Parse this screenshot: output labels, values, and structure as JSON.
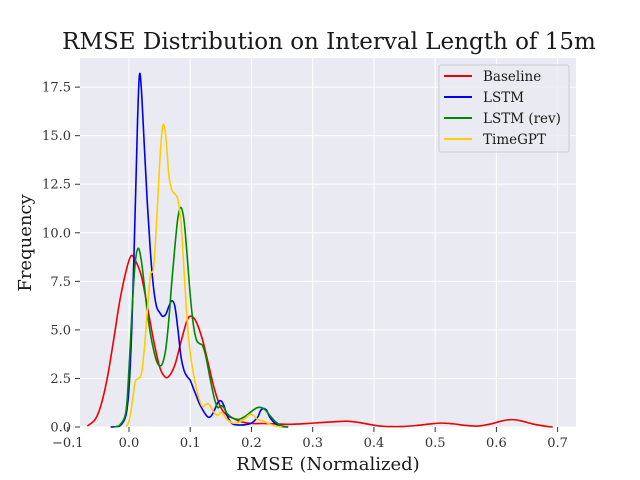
{
  "chart_data": {
    "type": "line",
    "title": "RMSE Distribution on Interval Length of 15m",
    "xlabel": "RMSE (Normalized)",
    "ylabel": "Frequency",
    "xlim": [
      -0.08,
      0.73
    ],
    "ylim": [
      0,
      19.0
    ],
    "xticks": [
      -0.1,
      0.0,
      0.1,
      0.2,
      0.3,
      0.4,
      0.5,
      0.6,
      0.7
    ],
    "xtick_labels": [
      "−0.1",
      "0.0",
      "0.1",
      "0.2",
      "0.3",
      "0.4",
      "0.5",
      "0.6",
      "0.7"
    ],
    "yticks": [
      0.0,
      2.5,
      5.0,
      7.5,
      10.0,
      12.5,
      15.0,
      17.5
    ],
    "ytick_labels": [
      "0.0",
      "2.5",
      "5.0",
      "7.5",
      "10.0",
      "12.5",
      "15.0",
      "17.5"
    ],
    "grid": true,
    "legend_position": "top-right",
    "series": [
      {
        "name": "Baseline",
        "color": "#ee0000",
        "points": [
          [
            -0.068,
            0.05
          ],
          [
            -0.055,
            0.4
          ],
          [
            -0.045,
            1.2
          ],
          [
            -0.035,
            2.6
          ],
          [
            -0.025,
            4.5
          ],
          [
            -0.015,
            6.5
          ],
          [
            -0.005,
            8.0
          ],
          [
            0.003,
            8.8
          ],
          [
            0.01,
            8.6
          ],
          [
            0.02,
            7.8
          ],
          [
            0.03,
            6.2
          ],
          [
            0.04,
            4.5
          ],
          [
            0.05,
            3.1
          ],
          [
            0.058,
            2.6
          ],
          [
            0.065,
            2.6
          ],
          [
            0.075,
            3.2
          ],
          [
            0.085,
            4.4
          ],
          [
            0.095,
            5.5
          ],
          [
            0.102,
            5.7
          ],
          [
            0.11,
            5.4
          ],
          [
            0.12,
            4.5
          ],
          [
            0.13,
            3.2
          ],
          [
            0.14,
            1.9
          ],
          [
            0.15,
            1.0
          ],
          [
            0.16,
            0.6
          ],
          [
            0.17,
            0.45
          ],
          [
            0.18,
            0.3
          ],
          [
            0.19,
            0.22
          ],
          [
            0.2,
            0.18
          ],
          [
            0.22,
            0.18
          ],
          [
            0.24,
            0.16
          ],
          [
            0.26,
            0.14
          ],
          [
            0.28,
            0.16
          ],
          [
            0.3,
            0.2
          ],
          [
            0.32,
            0.24
          ],
          [
            0.34,
            0.28
          ],
          [
            0.355,
            0.3
          ],
          [
            0.37,
            0.26
          ],
          [
            0.39,
            0.15
          ],
          [
            0.41,
            0.05
          ],
          [
            0.43,
            0.02
          ],
          [
            0.45,
            0.03
          ],
          [
            0.47,
            0.08
          ],
          [
            0.49,
            0.15
          ],
          [
            0.51,
            0.2
          ],
          [
            0.53,
            0.16
          ],
          [
            0.55,
            0.08
          ],
          [
            0.57,
            0.05
          ],
          [
            0.59,
            0.15
          ],
          [
            0.61,
            0.32
          ],
          [
            0.625,
            0.38
          ],
          [
            0.64,
            0.32
          ],
          [
            0.66,
            0.15
          ],
          [
            0.68,
            0.04
          ],
          [
            0.692,
            0.0
          ]
        ]
      },
      {
        "name": "LSTM",
        "color": "#0000ee",
        "points": [
          [
            -0.03,
            0.0
          ],
          [
            -0.015,
            0.05
          ],
          [
            -0.005,
            0.6
          ],
          [
            0.0,
            2.0
          ],
          [
            0.005,
            5.5
          ],
          [
            0.01,
            11.0
          ],
          [
            0.014,
            15.8
          ],
          [
            0.017,
            18.1
          ],
          [
            0.02,
            17.5
          ],
          [
            0.025,
            14.5
          ],
          [
            0.03,
            11.5
          ],
          [
            0.035,
            9.0
          ],
          [
            0.04,
            7.2
          ],
          [
            0.045,
            6.2
          ],
          [
            0.05,
            5.9
          ],
          [
            0.055,
            5.7
          ],
          [
            0.06,
            5.8
          ],
          [
            0.065,
            6.2
          ],
          [
            0.07,
            6.5
          ],
          [
            0.075,
            6.2
          ],
          [
            0.08,
            5.0
          ],
          [
            0.085,
            3.6
          ],
          [
            0.09,
            2.9
          ],
          [
            0.095,
            2.6
          ],
          [
            0.1,
            2.4
          ],
          [
            0.105,
            2.0
          ],
          [
            0.11,
            1.6
          ],
          [
            0.115,
            1.2
          ],
          [
            0.12,
            0.9
          ],
          [
            0.125,
            0.65
          ],
          [
            0.13,
            0.5
          ],
          [
            0.135,
            0.6
          ],
          [
            0.14,
            0.9
          ],
          [
            0.145,
            1.25
          ],
          [
            0.15,
            1.35
          ],
          [
            0.155,
            1.1
          ],
          [
            0.16,
            0.6
          ],
          [
            0.165,
            0.3
          ],
          [
            0.17,
            0.15
          ],
          [
            0.18,
            0.1
          ],
          [
            0.19,
            0.12
          ],
          [
            0.2,
            0.2
          ],
          [
            0.21,
            0.5
          ],
          [
            0.215,
            0.85
          ],
          [
            0.22,
            0.95
          ],
          [
            0.225,
            0.85
          ],
          [
            0.23,
            0.5
          ],
          [
            0.24,
            0.15
          ],
          [
            0.25,
            0.03
          ],
          [
            0.26,
            0.0
          ]
        ]
      },
      {
        "name": "LSTM (rev)",
        "color": "#008800",
        "points": [
          [
            -0.025,
            0.0
          ],
          [
            -0.015,
            0.1
          ],
          [
            -0.005,
            0.8
          ],
          [
            0.0,
            3.0
          ],
          [
            0.005,
            6.0
          ],
          [
            0.01,
            8.4
          ],
          [
            0.015,
            9.2
          ],
          [
            0.02,
            8.6
          ],
          [
            0.025,
            7.3
          ],
          [
            0.03,
            5.9
          ],
          [
            0.035,
            4.8
          ],
          [
            0.04,
            4.0
          ],
          [
            0.045,
            3.4
          ],
          [
            0.05,
            3.15
          ],
          [
            0.055,
            3.3
          ],
          [
            0.06,
            4.0
          ],
          [
            0.065,
            5.5
          ],
          [
            0.07,
            7.5
          ],
          [
            0.075,
            9.3
          ],
          [
            0.08,
            10.8
          ],
          [
            0.085,
            11.3
          ],
          [
            0.09,
            10.6
          ],
          [
            0.095,
            8.8
          ],
          [
            0.1,
            6.8
          ],
          [
            0.105,
            5.3
          ],
          [
            0.11,
            4.5
          ],
          [
            0.115,
            4.3
          ],
          [
            0.12,
            4.2
          ],
          [
            0.125,
            3.7
          ],
          [
            0.13,
            2.9
          ],
          [
            0.135,
            2.1
          ],
          [
            0.14,
            1.4
          ],
          [
            0.145,
            1.0
          ],
          [
            0.15,
            1.1
          ],
          [
            0.155,
            1.0
          ],
          [
            0.16,
            0.7
          ],
          [
            0.17,
            0.45
          ],
          [
            0.18,
            0.4
          ],
          [
            0.19,
            0.55
          ],
          [
            0.2,
            0.8
          ],
          [
            0.21,
            1.0
          ],
          [
            0.22,
            0.95
          ],
          [
            0.23,
            0.6
          ],
          [
            0.24,
            0.25
          ],
          [
            0.25,
            0.05
          ],
          [
            0.26,
            0.0
          ]
        ]
      },
      {
        "name": "TimeGPT",
        "color": "#ffcc00",
        "points": [
          [
            -0.005,
            0.0
          ],
          [
            0.0,
            0.3
          ],
          [
            0.005,
            1.2
          ],
          [
            0.01,
            2.3
          ],
          [
            0.015,
            2.5
          ],
          [
            0.02,
            2.7
          ],
          [
            0.025,
            4.0
          ],
          [
            0.03,
            6.0
          ],
          [
            0.035,
            7.8
          ],
          [
            0.04,
            8.2
          ],
          [
            0.045,
            10.5
          ],
          [
            0.05,
            13.5
          ],
          [
            0.055,
            15.5
          ],
          [
            0.06,
            15.0
          ],
          [
            0.065,
            13.0
          ],
          [
            0.07,
            12.2
          ],
          [
            0.075,
            12.0
          ],
          [
            0.08,
            11.7
          ],
          [
            0.085,
            10.5
          ],
          [
            0.09,
            8.0
          ],
          [
            0.095,
            5.5
          ],
          [
            0.1,
            3.8
          ],
          [
            0.105,
            2.8
          ],
          [
            0.11,
            2.0
          ],
          [
            0.115,
            1.4
          ],
          [
            0.12,
            1.05
          ],
          [
            0.125,
            1.15
          ],
          [
            0.13,
            1.2
          ],
          [
            0.135,
            0.95
          ],
          [
            0.14,
            0.7
          ],
          [
            0.145,
            0.6
          ],
          [
            0.15,
            0.75
          ],
          [
            0.155,
            0.6
          ],
          [
            0.16,
            0.4
          ],
          [
            0.17,
            0.2
          ],
          [
            0.18,
            0.25
          ],
          [
            0.19,
            0.45
          ],
          [
            0.195,
            0.6
          ],
          [
            0.2,
            0.65
          ],
          [
            0.205,
            0.55
          ],
          [
            0.21,
            0.4
          ],
          [
            0.22,
            0.3
          ],
          [
            0.23,
            0.15
          ],
          [
            0.24,
            0.05
          ],
          [
            0.25,
            0.0
          ]
        ]
      }
    ]
  }
}
